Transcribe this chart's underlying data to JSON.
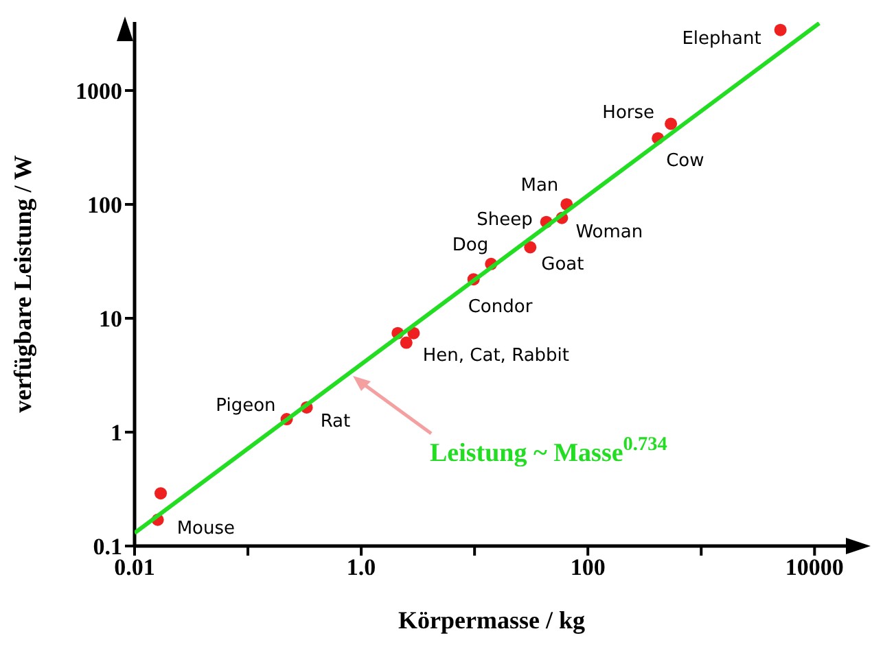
{
  "chart_data": {
    "type": "scatter",
    "xlabel": "Körpermasse / kg",
    "ylabel": "verfügbare Leistung / W",
    "log": "xy",
    "grid": false,
    "legend": false,
    "xlim": [
      0.01,
      20000
    ],
    "ylim": [
      0.1,
      4000
    ],
    "xticks": [
      0.01,
      {
        "value": 0.1,
        "label": null
      },
      {
        "value": 1,
        "label": "1.0"
      },
      {
        "value": 10,
        "label": null
      },
      100,
      {
        "value": 1000,
        "label": null
      },
      10000
    ],
    "yticks": [
      0.1,
      1,
      10,
      100,
      1000
    ],
    "series": [
      {
        "marker": "circle",
        "color": "#ee2020",
        "x": [
          5000,
          540,
          415,
          65,
          59,
          43,
          31,
          14,
          9.8,
          2.1,
          2.5,
          2.9,
          0.22,
          0.33,
          0.017,
          0.016
        ],
        "values": [
          3400,
          510,
          380,
          100,
          76,
          70,
          42,
          30,
          22,
          7.4,
          6.1,
          7.4,
          1.3,
          1.65,
          0.29,
          0.17
        ]
      },
      {
        "type": "line",
        "color": "#22dd22",
        "x": [
          0.01,
          11000
        ],
        "values": [
          0.13,
          3900
        ]
      }
    ],
    "annotations": [
      {
        "text": "Elephant",
        "x": 5000,
        "y": 3400
      },
      {
        "text": "Horse",
        "x": 540,
        "y": 510
      },
      {
        "text": "Cow",
        "x": 415,
        "y": 380
      },
      {
        "text": "Man",
        "x": 65,
        "y": 100
      },
      {
        "text": "Woman",
        "x": 59,
        "y": 76
      },
      {
        "text": "Sheep",
        "x": 43,
        "y": 70
      },
      {
        "text": "Goat",
        "x": 31,
        "y": 42
      },
      {
        "text": "Dog",
        "x": 14,
        "y": 30
      },
      {
        "text": "Condor",
        "x": 9.8,
        "y": 22
      },
      {
        "text": "Hen, Cat, Rabbit",
        "x": 2.5,
        "y": 6.1
      },
      {
        "text": "Pigeon",
        "x": 0.22,
        "y": 1.3
      },
      {
        "text": "Rat",
        "x": 0.33,
        "y": 1.65
      },
      {
        "text": "Mouse",
        "x": 0.016,
        "y": 0.17
      },
      "Leistung ~ Masse$^{0.734}$"
    ]
  }
}
